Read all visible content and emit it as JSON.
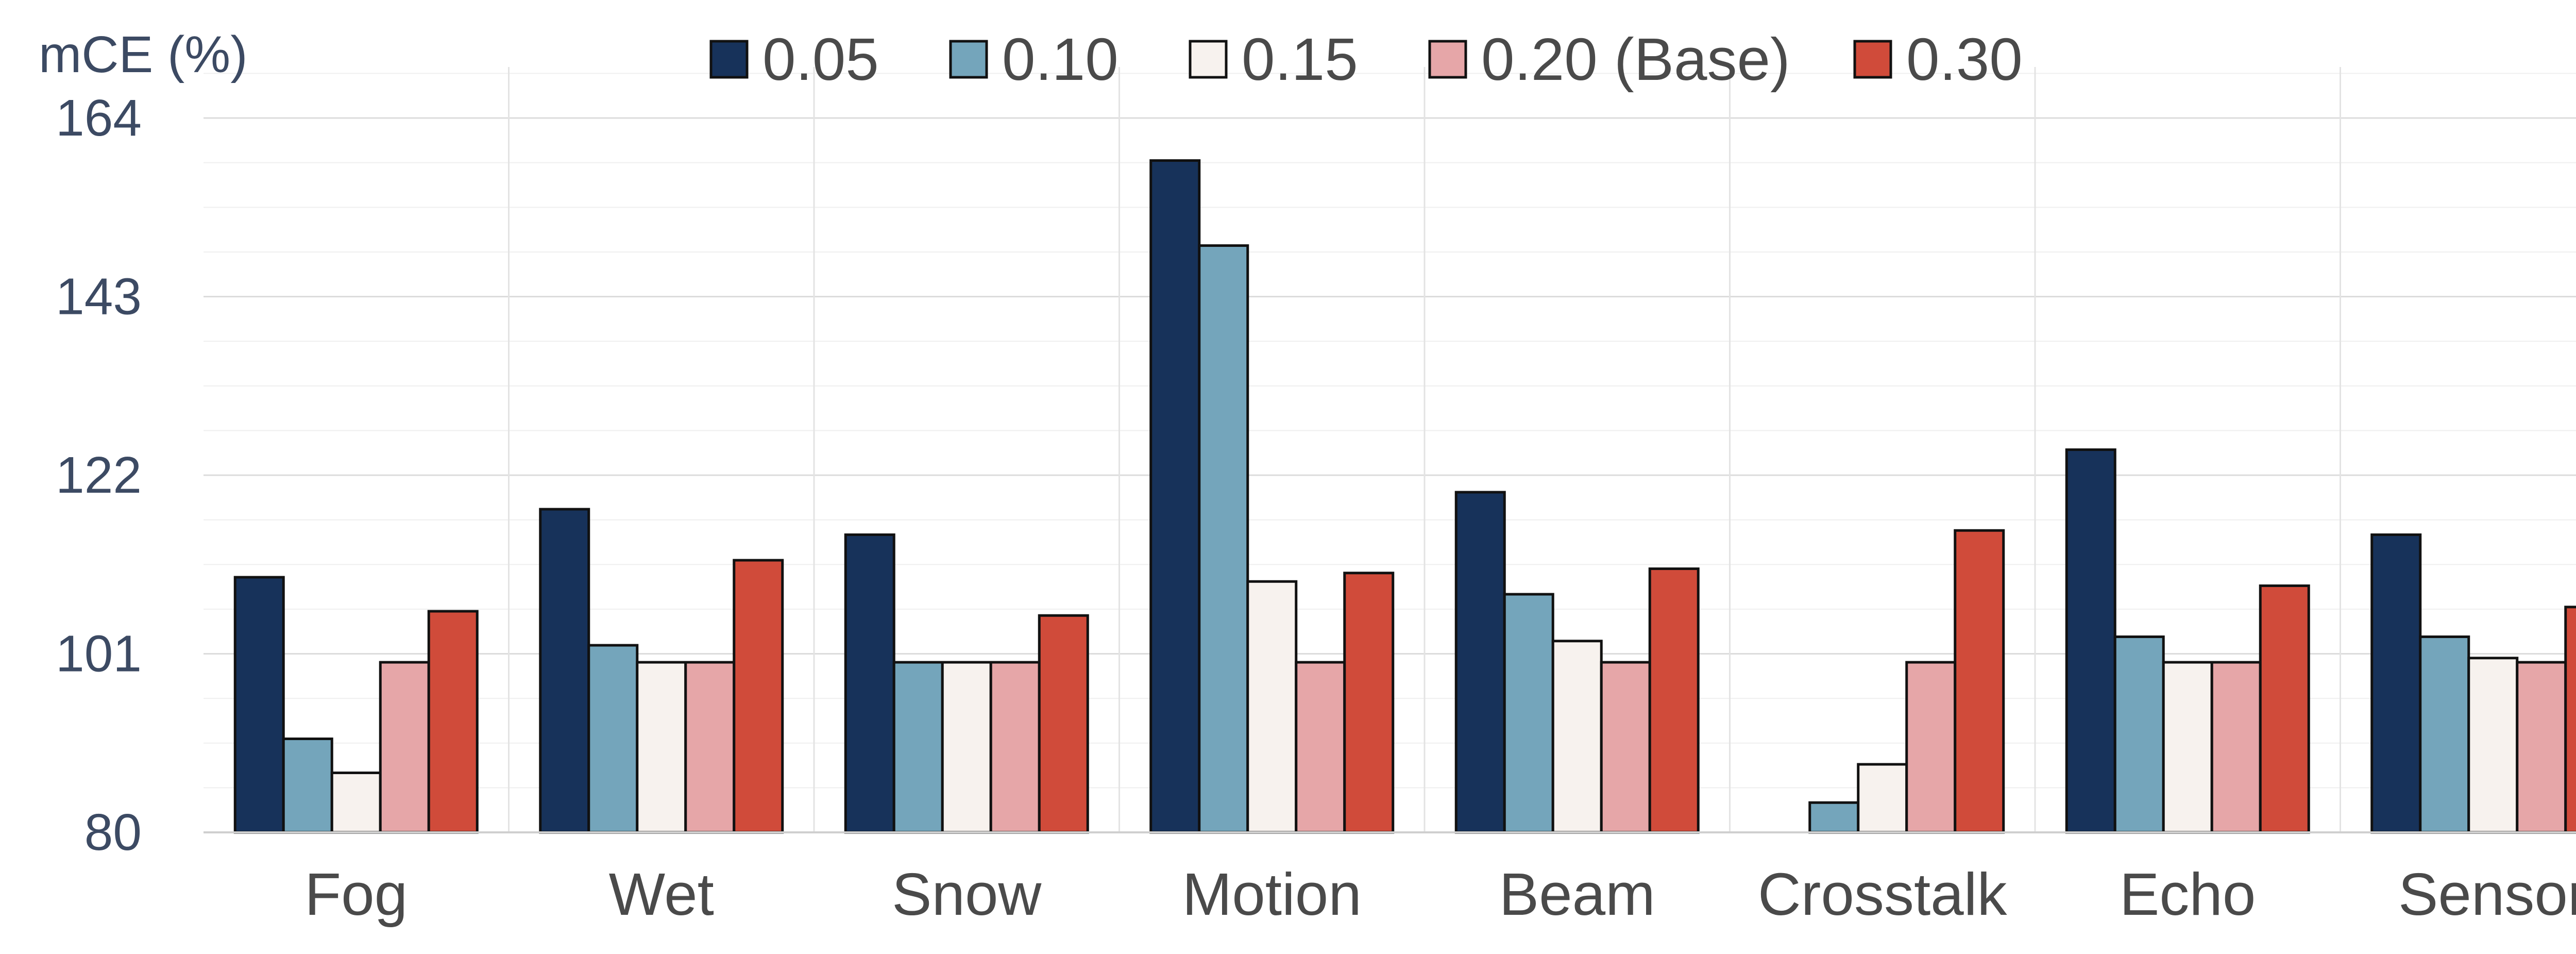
{
  "chart_data": {
    "type": "bar",
    "title": "",
    "xlabel": "",
    "ylabel": "mCE (%)",
    "ylim": [
      80,
      170
    ],
    "yticks": [
      80,
      101,
      122,
      143,
      164
    ],
    "grid": true,
    "legend_position": "top-center",
    "categories": [
      "Fog",
      "Wet",
      "Snow",
      "Motion",
      "Beam",
      "Crosstalk",
      "Echo",
      "Sensor"
    ],
    "series": [
      {
        "name": "0.05",
        "color": "#17325a",
        "values": [
          110,
          118,
          115,
          159,
          120,
          80,
          125,
          115
        ]
      },
      {
        "name": "0.10",
        "color": "#74a5bb",
        "values": [
          91,
          102,
          100,
          149,
          108,
          83.5,
          103,
          103
        ]
      },
      {
        "name": "0.15",
        "color": "#f7f2ee",
        "values": [
          87,
          100,
          100,
          109.5,
          102.5,
          88,
          100,
          100.5
        ]
      },
      {
        "name": "0.20 (Base)",
        "color": "#e6a6a8",
        "values": [
          100,
          100,
          100,
          100,
          100,
          100,
          100,
          100
        ]
      },
      {
        "name": "0.30",
        "color": "#d04b3a",
        "values": [
          106,
          112,
          105.5,
          110.5,
          111,
          115.5,
          109,
          106.5
        ]
      }
    ]
  }
}
